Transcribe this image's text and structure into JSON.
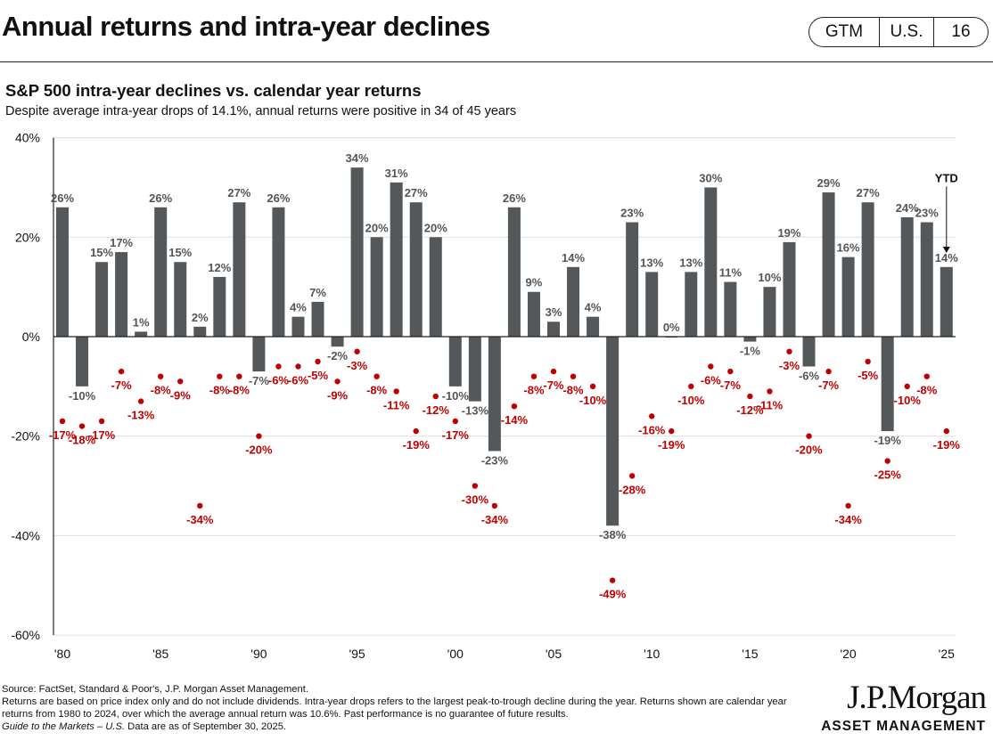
{
  "header": {
    "title": "Annual returns and intra-year declines",
    "badge": [
      "GTM",
      "U.S.",
      "16"
    ]
  },
  "chart_data": {
    "type": "bar",
    "title": "S&P 500 intra-year declines vs. calendar year returns",
    "subtitle": "Despite average intra-year drops of 14.1%, annual returns were positive in 34 of 45 years",
    "years": [
      1980,
      1981,
      1982,
      1983,
      1984,
      1985,
      1986,
      1987,
      1988,
      1989,
      1990,
      1991,
      1992,
      1993,
      1994,
      1995,
      1996,
      1997,
      1998,
      1999,
      2000,
      2001,
      2002,
      2003,
      2004,
      2005,
      2006,
      2007,
      2008,
      2009,
      2010,
      2011,
      2012,
      2013,
      2014,
      2015,
      2016,
      2017,
      2018,
      2019,
      2020,
      2021,
      2022,
      2023,
      2024,
      2025
    ],
    "series": [
      {
        "name": "Calendar year return",
        "type": "bar",
        "color": "#54585a",
        "values": [
          26,
          -10,
          15,
          17,
          1,
          26,
          15,
          2,
          12,
          27,
          -7,
          26,
          4,
          7,
          -2,
          34,
          20,
          31,
          27,
          20,
          -10,
          -13,
          -23,
          26,
          9,
          3,
          14,
          4,
          -38,
          23,
          13,
          0,
          13,
          30,
          11,
          -1,
          10,
          19,
          -6,
          29,
          16,
          27,
          -19,
          24,
          23,
          14
        ]
      },
      {
        "name": "Intra-year decline",
        "type": "scatter",
        "color": "#c00000",
        "values": [
          -17,
          -18,
          -17,
          -7,
          -13,
          -8,
          -9,
          -34,
          -8,
          -8,
          -20,
          -6,
          -6,
          -5,
          -9,
          -3,
          -8,
          -11,
          -19,
          -12,
          -17,
          -30,
          -34,
          -14,
          -8,
          -7,
          -8,
          -10,
          -49,
          -28,
          -16,
          -19,
          -10,
          -6,
          -7,
          -12,
          -11,
          -3,
          -20,
          -7,
          -34,
          -5,
          -25,
          -10,
          -8,
          -19
        ]
      }
    ],
    "yticks": [
      40,
      20,
      0,
      -20,
      -40,
      -60
    ],
    "ylim": [
      -60,
      40
    ],
    "xticks": [
      "'80",
      "'85",
      "'90",
      "'95",
      "'00",
      "'05",
      "'10",
      "'15",
      "'20",
      "'25"
    ],
    "annotation": "YTD",
    "grid": true
  },
  "footer": {
    "source": "Source: FactSet, Standard & Poor's, J.P. Morgan Asset Management.",
    "note": "Returns are based on price index only and do not include dividends. Intra-year drops refers to the largest peak-to-trough decline during the year. Returns shown are calendar year returns from 1980 to 2024, over which the average annual return was 10.6%. Past performance is no guarantee of future results.",
    "guide": "Guide to the Markets – U.S.",
    "asof": " Data are as of September 30, 2025."
  },
  "logo": {
    "name": "J.P.Morgan",
    "sub": "ASSET MANAGEMENT"
  }
}
